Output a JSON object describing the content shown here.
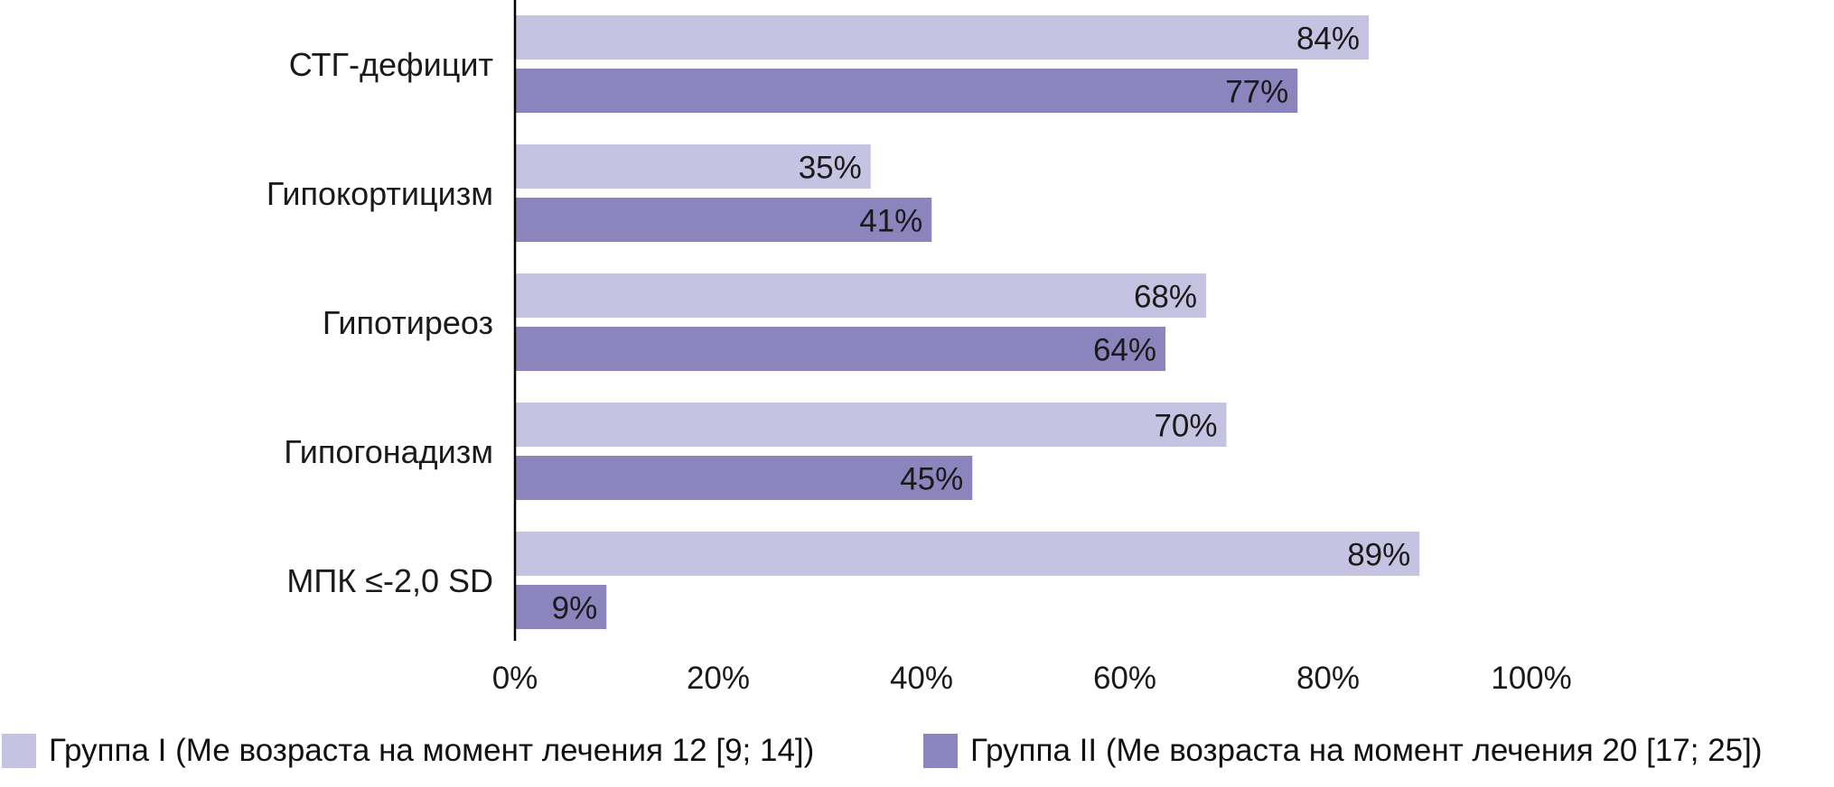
{
  "chart_data": {
    "type": "bar",
    "orientation": "horizontal",
    "title": "",
    "xlabel": "",
    "ylabel": "",
    "categories": [
      "СТГ-дефицит",
      "Гипокортицизм",
      "Гипотиреоз",
      "Гипогонадизм",
      "МПК ≤-2,0 SD"
    ],
    "series": [
      {
        "name": "Группа I (Ме возраста на момент лечения 12 [9; 14])",
        "color": "#c6c3e2",
        "values": [
          84,
          35,
          68,
          70,
          89
        ],
        "labels": [
          "84%",
          "35%",
          "68%",
          "70%",
          "89%"
        ]
      },
      {
        "name": "Группа II (Ме возраста на момент лечения 20 [17; 25])",
        "color": "#8b84bd",
        "values": [
          77,
          41,
          64,
          45,
          9
        ],
        "labels": [
          "77%",
          "41%",
          "64%",
          "45%",
          "9%"
        ]
      }
    ],
    "xlim": [
      0,
      100
    ],
    "xticks": [
      "0%",
      "20%",
      "40%",
      "60%",
      "80%",
      "100%"
    ],
    "grid": false,
    "legend_position": "bottom"
  }
}
